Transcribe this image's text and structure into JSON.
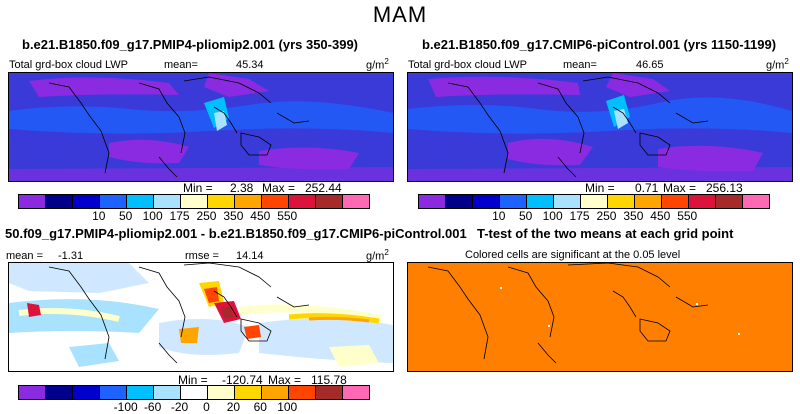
{
  "season": "MAM",
  "panels": {
    "p1": {
      "case_title": "b.e21.B1850.f09_g17.PMIP4-pliomip2.001 (yrs 350-399)",
      "variable": "Total grd-box cloud LWP",
      "mean_label": "mean=",
      "mean_value": "45.34",
      "units": "g/m",
      "units_exp": "2",
      "min_label": "Min =",
      "min_value": "2.38",
      "max_label": "Max =",
      "max_value": "252.44"
    },
    "p2": {
      "case_title": "b.e21.B1850.f09_g17.CMIP6-piControl.001 (yrs 1150-1199)",
      "variable": "Total grd-box cloud LWP",
      "mean_label": "mean=",
      "mean_value": "46.65",
      "units": "g/m",
      "units_exp": "2",
      "min_label": "Min =",
      "min_value": "0.71",
      "max_label": "Max =",
      "max_value": "256.13"
    },
    "p3": {
      "case_title": "50.f09_g17.PMIP4-pliomip2.001 - b.e21.B1850.f09_g17.CMIP6-piControl.001",
      "mean_label": "mean =",
      "mean_value": "-1.31",
      "rmse_label": "rmse =",
      "rmse_value": "14.14",
      "units": "g/m",
      "units_exp": "2",
      "min_label": "Min =",
      "min_value": "-120.74",
      "max_label": "Max =",
      "max_value": "115.78"
    },
    "p4": {
      "case_title": "T-test of the two means at each grid point",
      "note": "Colored cells are significant at the 0.05 level"
    }
  },
  "colorbars": {
    "abs_colors": [
      "#8a2be2",
      "#00008b",
      "#0000cd",
      "#1e63ff",
      "#00bfff",
      "#a9e2ff",
      "#ffffcc",
      "#ffd700",
      "#ffa500",
      "#ff4500",
      "#dc143c",
      "#a52a2a",
      "#ff69b4"
    ],
    "abs_ticks": [
      "10",
      "50",
      "100",
      "175",
      "250",
      "350",
      "450",
      "550"
    ],
    "diff_colors": [
      "#8a2be2",
      "#00008b",
      "#0000cd",
      "#1e63ff",
      "#00bfff",
      "#a9e2ff",
      "#ffffff",
      "#ffffcc",
      "#ffd700",
      "#ffa500",
      "#ff4500",
      "#a52a2a",
      "#ff69b4"
    ],
    "diff_ticks": [
      "-100",
      "-60",
      "-20",
      "0",
      "20",
      "60",
      "100"
    ]
  },
  "colors": {
    "abs_map_bg": "#3a3ad8",
    "diff_map_bg": "#cfe8ff",
    "ttest_fill": "#ff7f00"
  }
}
